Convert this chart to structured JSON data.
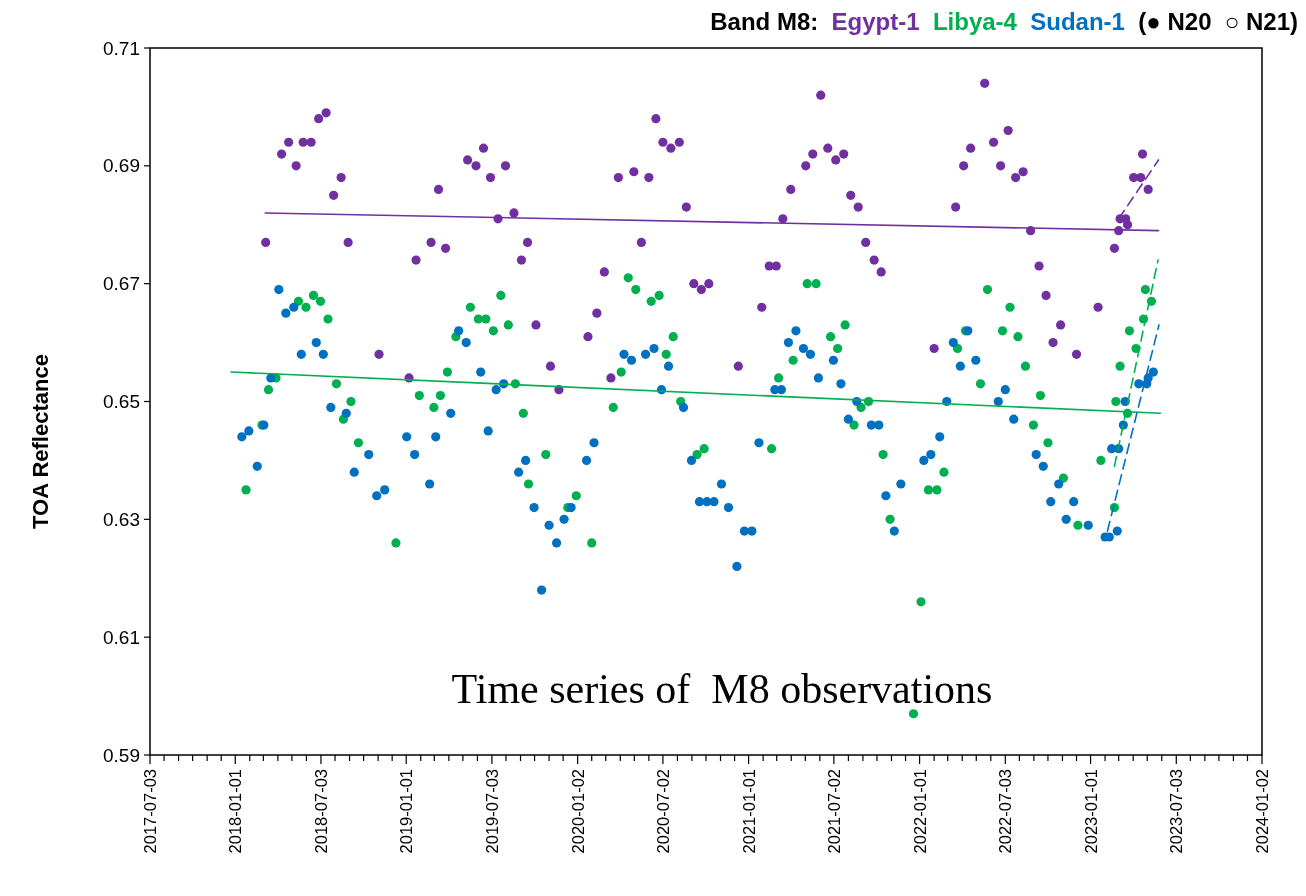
{
  "chart_data": {
    "type": "scatter",
    "legend_title": "Band M8:",
    "ylabel": "TOA Reflectance",
    "annotations": [
      "Time series of  M8 observations",
      "(● N20  ○ N21)"
    ],
    "legend": "top right",
    "marker": "circle",
    "xlim": [
      "2017-07-03",
      "2024-01-02"
    ],
    "ylim": [
      0.59,
      0.71
    ],
    "yticks": [
      0.59,
      0.61,
      0.63,
      0.65,
      0.67,
      0.69,
      0.71
    ],
    "xticks": [
      "2017-07-03",
      {
        "value": "2017-08-02",
        "label": null
      },
      {
        "value": "2017-09-02",
        "label": null
      },
      {
        "value": "2017-10-02",
        "label": null
      },
      {
        "value": "2017-11-02",
        "label": null
      },
      {
        "value": "2017-12-02",
        "label": null
      },
      "2018-01-01",
      {
        "value": "2018-02-01",
        "label": null
      },
      {
        "value": "2018-03-02",
        "label": null
      },
      {
        "value": "2018-04-02",
        "label": null
      },
      {
        "value": "2018-05-02",
        "label": null
      },
      {
        "value": "2018-06-02",
        "label": null
      },
      "2018-07-03",
      {
        "value": "2018-08-02",
        "label": null
      },
      {
        "value": "2018-09-02",
        "label": null
      },
      {
        "value": "2018-10-02",
        "label": null
      },
      {
        "value": "2018-11-02",
        "label": null
      },
      {
        "value": "2018-12-02",
        "label": null
      },
      "2019-01-01",
      {
        "value": "2019-02-01",
        "label": null
      },
      {
        "value": "2019-03-02",
        "label": null
      },
      {
        "value": "2019-04-02",
        "label": null
      },
      {
        "value": "2019-05-02",
        "label": null
      },
      {
        "value": "2019-06-02",
        "label": null
      },
      "2019-07-03",
      {
        "value": "2019-08-02",
        "label": null
      },
      {
        "value": "2019-09-02",
        "label": null
      },
      {
        "value": "2019-10-02",
        "label": null
      },
      {
        "value": "2019-11-02",
        "label": null
      },
      {
        "value": "2019-12-02",
        "label": null
      },
      "2020-01-02",
      {
        "value": "2020-02-01",
        "label": null
      },
      {
        "value": "2020-03-02",
        "label": null
      },
      {
        "value": "2020-04-02",
        "label": null
      },
      {
        "value": "2020-05-02",
        "label": null
      },
      {
        "value": "2020-06-02",
        "label": null
      },
      "2020-07-02",
      {
        "value": "2020-08-02",
        "label": null
      },
      {
        "value": "2020-09-02",
        "label": null
      },
      {
        "value": "2020-10-02",
        "label": null
      },
      {
        "value": "2020-11-02",
        "label": null
      },
      {
        "value": "2020-12-02",
        "label": null
      },
      "2021-01-01",
      {
        "value": "2021-02-01",
        "label": null
      },
      {
        "value": "2021-03-02",
        "label": null
      },
      {
        "value": "2021-04-02",
        "label": null
      },
      {
        "value": "2021-05-02",
        "label": null
      },
      {
        "value": "2021-06-02",
        "label": null
      },
      "2021-07-02",
      {
        "value": "2021-08-02",
        "label": null
      },
      {
        "value": "2021-09-02",
        "label": null
      },
      {
        "value": "2021-10-02",
        "label": null
      },
      {
        "value": "2021-11-02",
        "label": null
      },
      {
        "value": "2021-12-02",
        "label": null
      },
      "2022-01-01",
      {
        "value": "2022-02-01",
        "label": null
      },
      {
        "value": "2022-03-02",
        "label": null
      },
      {
        "value": "2022-04-02",
        "label": null
      },
      {
        "value": "2022-05-02",
        "label": null
      },
      {
        "value": "2022-06-02",
        "label": null
      },
      "2022-07-03",
      {
        "value": "2022-08-02",
        "label": null
      },
      {
        "value": "2022-09-02",
        "label": null
      },
      {
        "value": "2022-10-02",
        "label": null
      },
      {
        "value": "2022-11-02",
        "label": null
      },
      {
        "value": "2022-12-02",
        "label": null
      },
      "2023-01-01",
      {
        "value": "2023-02-01",
        "label": null
      },
      {
        "value": "2023-03-02",
        "label": null
      },
      {
        "value": "2023-04-02",
        "label": null
      },
      {
        "value": "2023-05-02",
        "label": null
      },
      {
        "value": "2023-06-02",
        "label": null
      },
      "2023-07-03",
      {
        "value": "2023-08-02",
        "label": null
      },
      {
        "value": "2023-09-02",
        "label": null
      },
      {
        "value": "2023-10-02",
        "label": null
      },
      {
        "value": "2023-11-02",
        "label": null
      },
      {
        "value": "2023-12-02",
        "label": null
      },
      "2024-01-02"
    ],
    "series": [
      {
        "name": "Egypt-1",
        "color": "#7030a0",
        "x": [
          "2018-03-07",
          "2018-04-10",
          "2018-04-25",
          "2018-05-11",
          "2018-05-26",
          "2018-06-12",
          "2018-06-28",
          "2018-07-14",
          "2018-07-30",
          "2018-08-15",
          "2018-08-30",
          "2018-11-04",
          "2019-01-07",
          "2019-01-22",
          "2019-02-23",
          "2019-03-11",
          "2019-03-26",
          "2019-05-12",
          "2019-05-30",
          "2019-06-15",
          "2019-06-30",
          "2019-07-16",
          "2019-08-01",
          "2019-08-19",
          "2019-09-04",
          "2019-09-17",
          "2019-10-05",
          "2019-11-05",
          "2019-11-23",
          "2020-01-24",
          "2020-02-12",
          "2020-02-28",
          "2020-03-13",
          "2020-03-29",
          "2020-05-01",
          "2020-05-17",
          "2020-06-02",
          "2020-06-17",
          "2020-07-02",
          "2020-07-19",
          "2020-08-06",
          "2020-08-21",
          "2020-09-06",
          "2020-09-22",
          "2020-10-08",
          "2020-12-10",
          "2021-01-29",
          "2021-02-14",
          "2021-03-01",
          "2021-03-15",
          "2021-04-01",
          "2021-05-03",
          "2021-05-18",
          "2021-06-04",
          "2021-06-19",
          "2021-07-06",
          "2021-07-23",
          "2021-08-07",
          "2021-08-23",
          "2021-09-08",
          "2021-09-26",
          "2021-10-11",
          "2022-02-01",
          "2022-03-19",
          "2022-04-05",
          "2022-04-20",
          "2022-05-20",
          "2022-06-08",
          "2022-06-23",
          "2022-07-09",
          "2022-07-25",
          "2022-08-10",
          "2022-08-26",
          "2022-09-13",
          "2022-09-28",
          "2022-10-13",
          "2022-10-29",
          "2022-12-02",
          "2023-01-17",
          "2023-02-21",
          "2023-03-05",
          "2023-03-21",
          "2023-04-22"
        ],
        "values": [
          0.677,
          0.692,
          0.694,
          0.69,
          0.694,
          0.694,
          0.698,
          0.699,
          0.685,
          0.688,
          0.677,
          0.658,
          0.654,
          0.674,
          0.677,
          0.686,
          0.676,
          0.691,
          0.69,
          0.693,
          0.688,
          0.681,
          0.69,
          0.682,
          0.674,
          0.677,
          0.663,
          0.656,
          0.652,
          0.661,
          0.665,
          0.672,
          0.654,
          0.688,
          0.689,
          0.677,
          0.688,
          0.698,
          0.694,
          0.693,
          0.694,
          0.683,
          0.67,
          0.669,
          0.67,
          0.656,
          0.666,
          0.673,
          0.673,
          0.681,
          0.686,
          0.69,
          0.692,
          0.702,
          0.693,
          0.691,
          0.692,
          0.685,
          0.683,
          0.677,
          0.674,
          0.672,
          0.659,
          0.683,
          0.69,
          0.693,
          0.704,
          0.694,
          0.69,
          0.696,
          0.688,
          0.689,
          0.679,
          0.673,
          0.668,
          0.66,
          0.663,
          0.658,
          0.666,
          0.676,
          0.681,
          0.68,
          0.692
        ]
      },
      {
        "name": "Libya-4",
        "color": "#00b050",
        "x": [
          "2018-01-24",
          "2018-02-27",
          "2018-03-13",
          "2018-03-29",
          "2018-05-16",
          "2018-06-01",
          "2018-06-17",
          "2018-07-02",
          "2018-07-18",
          "2018-08-05",
          "2018-08-20",
          "2018-09-05",
          "2018-09-21",
          "2018-12-10",
          "2019-01-29",
          "2019-03-01",
          "2019-03-15",
          "2019-03-30",
          "2019-04-17",
          "2019-05-18",
          "2019-06-04",
          "2019-06-20",
          "2019-07-06",
          "2019-07-22",
          "2019-08-07",
          "2019-08-22",
          "2019-09-08",
          "2019-09-19",
          "2019-10-26",
          "2019-12-12",
          "2019-12-30",
          "2020-02-01",
          "2020-03-18",
          "2020-04-04",
          "2020-04-19",
          "2020-05-05",
          "2020-06-07",
          "2020-06-24",
          "2020-07-09",
          "2020-07-24",
          "2020-08-09",
          "2020-09-13",
          "2020-09-28",
          "2021-02-19",
          "2021-03-06",
          "2021-04-06",
          "2021-05-06",
          "2021-05-25",
          "2021-06-25",
          "2021-07-10",
          "2021-07-26",
          "2021-08-14",
          "2021-08-29",
          "2021-09-14",
          "2021-10-15",
          "2021-10-30",
          "2021-12-19",
          "2022-01-04",
          "2022-01-20",
          "2022-02-07",
          "2022-02-22",
          "2022-03-23",
          "2022-04-09",
          "2022-05-11",
          "2022-05-26",
          "2022-06-27",
          "2022-07-13",
          "2022-07-30",
          "2022-08-15",
          "2022-09-01",
          "2022-09-16",
          "2022-10-02",
          "2022-11-04",
          "2022-12-05",
          "2023-01-23",
          "2023-02-24",
          "2023-03-25",
          "2023-04-28"
        ],
        "values": [
          0.635,
          0.646,
          0.652,
          0.654,
          0.667,
          0.666,
          0.668,
          0.667,
          0.664,
          0.653,
          0.647,
          0.65,
          0.643,
          0.626,
          0.651,
          0.649,
          0.651,
          0.655,
          0.661,
          0.666,
          0.664,
          0.664,
          0.662,
          0.668,
          0.663,
          0.653,
          0.648,
          0.636,
          0.641,
          0.632,
          0.634,
          0.626,
          0.649,
          0.655,
          0.671,
          0.669,
          0.667,
          0.668,
          0.658,
          0.661,
          0.65,
          0.641,
          0.642,
          0.642,
          0.654,
          0.657,
          0.67,
          0.67,
          0.661,
          0.659,
          0.663,
          0.646,
          0.649,
          0.65,
          0.641,
          0.63,
          0.597,
          0.616,
          0.635,
          0.635,
          0.638,
          0.659,
          0.662,
          0.653,
          0.669,
          0.662,
          0.666,
          0.661,
          0.656,
          0.646,
          0.651,
          0.643,
          0.637,
          0.629,
          0.64,
          0.65,
          0.662,
          0.669
        ]
      },
      {
        "name": "Sudan-1",
        "color": "#0070c0",
        "x": [
          "2018-01-15",
          "2018-01-30",
          "2018-02-17",
          "2018-03-03",
          "2018-03-18",
          "2018-04-04",
          "2018-04-19",
          "2018-05-06",
          "2018-05-22",
          "2018-06-23",
          "2018-07-08",
          "2018-07-24",
          "2018-08-26",
          "2018-09-12",
          "2018-10-13",
          "2018-10-30",
          "2018-11-16",
          "2019-01-02",
          "2019-01-19",
          "2019-02-20",
          "2019-03-05",
          "2019-04-06",
          "2019-04-23",
          "2019-05-09",
          "2019-06-09",
          "2019-06-25",
          "2019-07-12",
          "2019-07-28",
          "2019-08-29",
          "2019-09-13",
          "2019-10-01",
          "2019-10-17",
          "2019-11-02",
          "2019-11-18",
          "2019-12-04",
          "2019-12-19",
          "2020-01-21",
          "2020-02-06",
          "2020-04-10",
          "2020-04-26",
          "2020-05-26",
          "2020-06-13",
          "2020-06-29",
          "2020-07-14",
          "2020-08-15",
          "2020-09-01",
          "2020-09-18",
          "2020-10-04",
          "2020-10-19",
          "2020-11-04",
          "2020-11-19",
          "2020-12-07",
          "2020-12-23",
          "2021-01-08",
          "2021-01-23",
          "2021-02-26",
          "2021-03-12",
          "2021-03-27",
          "2021-04-12",
          "2021-04-28",
          "2021-05-13",
          "2021-05-30",
          "2021-07-01",
          "2021-07-17",
          "2021-08-02",
          "2021-08-20",
          "2021-09-20",
          "2021-10-06",
          "2021-10-21",
          "2021-11-08",
          "2021-11-22",
          "2022-01-10",
          "2022-01-25",
          "2022-02-13",
          "2022-02-28",
          "2022-03-14",
          "2022-03-29",
          "2022-04-14",
          "2022-05-01",
          "2022-06-18",
          "2022-07-03",
          "2022-07-21",
          "2022-09-07",
          "2022-09-22",
          "2022-10-08",
          "2022-10-25",
          "2022-11-10",
          "2022-11-26",
          "2022-12-27",
          "2023-02-01",
          "2023-02-15",
          "2023-03-02",
          "2023-03-16",
          "2023-04-18",
          "2023-05-04"
        ],
        "values": [
          0.644,
          0.645,
          0.639,
          0.646,
          0.654,
          0.669,
          0.665,
          0.666,
          0.658,
          0.66,
          0.658,
          0.649,
          0.648,
          0.638,
          0.641,
          0.634,
          0.635,
          0.644,
          0.641,
          0.636,
          0.644,
          0.648,
          0.662,
          0.66,
          0.655,
          0.645,
          0.652,
          0.653,
          0.638,
          0.64,
          0.632,
          0.618,
          0.629,
          0.626,
          0.63,
          0.632,
          0.64,
          0.643,
          0.658,
          0.657,
          0.658,
          0.659,
          0.652,
          0.656,
          0.649,
          0.64,
          0.633,
          0.633,
          0.633,
          0.636,
          0.632,
          0.622,
          0.628,
          0.628,
          0.643,
          0.652,
          0.652,
          0.66,
          0.662,
          0.659,
          0.658,
          0.654,
          0.657,
          0.653,
          0.647,
          0.65,
          0.646,
          0.646,
          0.634,
          0.628,
          0.636,
          0.64,
          0.641,
          0.644,
          0.65,
          0.66,
          0.656,
          0.662,
          0.657,
          0.65,
          0.652,
          0.647,
          0.641,
          0.639,
          0.633,
          0.636,
          0.63,
          0.633,
          0.629,
          0.627,
          0.642,
          0.642,
          0.65,
          null,
          0.654
        ]
      },
      {
        "color": "#7030a0",
        "x": [
          "2023-03-02",
          "2023-03-17",
          "2023-04-03",
          "2023-04-18",
          "2023-05-04"
        ],
        "values": [
          0.679,
          0.681,
          0.688,
          0.688,
          0.686
        ]
      },
      {
        "color": "#00b050",
        "x": [
          "2023-02-21",
          "2023-03-05",
          "2023-03-21",
          "2023-04-08",
          "2023-04-24",
          "2023-05-11"
        ],
        "values": [
          0.632,
          0.656,
          0.648,
          0.659,
          0.664,
          0.667
        ]
      },
      {
        "color": "#0070c0",
        "x": [
          "2023-02-10",
          "2023-02-27",
          "2023-03-12",
          "2023-04-14",
          "2023-05-01",
          "2023-05-15"
        ],
        "values": [
          0.627,
          0.628,
          0.646,
          0.653,
          0.653,
          0.655
        ]
      },
      {
        "type": "line",
        "marker": "none",
        "color": "#7030a0",
        "line_style": "solid",
        "x": [
          "2018-03-06",
          "2023-05-26"
        ],
        "values": [
          0.682,
          0.679
        ]
      },
      {
        "type": "line",
        "marker": "none",
        "color": "#7030a0",
        "line_style": "dashed",
        "x": [
          "2023-03-02",
          "2023-05-26"
        ],
        "values": [
          0.681,
          0.691
        ]
      },
      {
        "type": "line",
        "marker": "none",
        "color": "#00b050",
        "line_style": "solid",
        "x": [
          "2017-12-23",
          "2023-05-30"
        ],
        "values": [
          0.655,
          0.648
        ]
      },
      {
        "type": "line",
        "marker": "none",
        "color": "#00b050",
        "line_style": "dashed",
        "x": [
          "2023-02-21",
          "2023-05-25"
        ],
        "values": [
          0.639,
          0.674
        ]
      },
      {
        "type": "line",
        "marker": "none",
        "color": "#0070c0",
        "line_style": "dashed",
        "x": [
          "2023-02-06",
          "2023-05-27"
        ],
        "values": [
          0.628,
          0.663
        ]
      }
    ]
  }
}
